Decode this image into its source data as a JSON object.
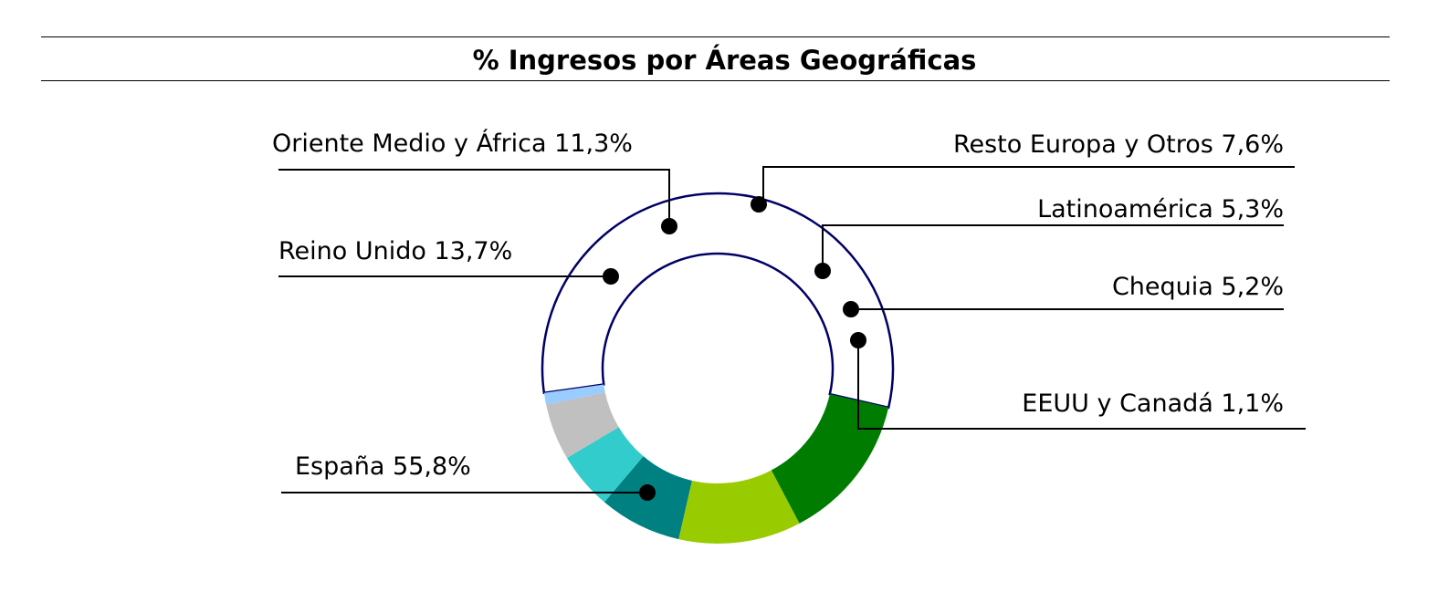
{
  "chart_data": {
    "type": "pie",
    "title": "% Ingresos por Áreas Geográficas",
    "categories": [
      "España",
      "Reino Unido",
      "Oriente Medio y África",
      "Resto Europa y Otros",
      "Latinoamérica",
      "Chequia",
      "EEUU y Canadá"
    ],
    "values": [
      55.8,
      13.7,
      11.3,
      7.6,
      5.3,
      5.2,
      1.1
    ],
    "labels": [
      "España 55,8%",
      "Reino Unido 13,7%",
      "Oriente Medio y África 11,3%",
      "Resto Europa y Otros 7,6%",
      "Latinoamérica 5,3%",
      "Chequia 5,2%",
      "EEUU y Canadá 1,1%"
    ],
    "colors": [
      "#ffffff",
      "#007d00",
      "#99cc00",
      "#008080",
      "#33cccc",
      "#c0c0c0",
      "#99ccff"
    ],
    "outline_color": "#000066",
    "style": "donut",
    "legend": "none"
  }
}
